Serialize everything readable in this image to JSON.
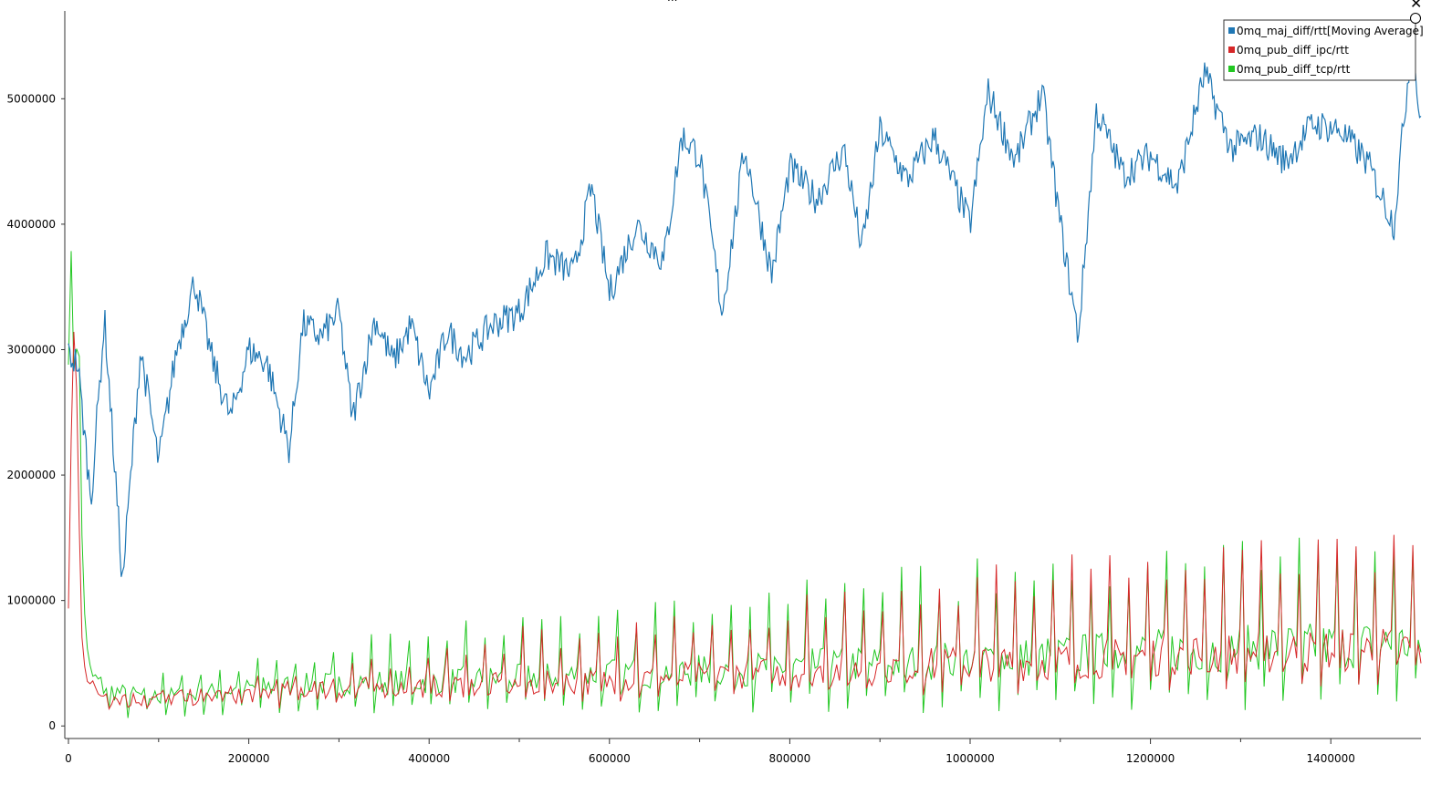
{
  "window": {
    "close_glyph": "✕",
    "top_mark": "..."
  },
  "chart_data": {
    "type": "line",
    "title": "",
    "xlabel": "",
    "ylabel": "",
    "xlim": [
      0,
      1500000
    ],
    "ylim": [
      -100000,
      5700000
    ],
    "x_ticks": [
      0,
      200000,
      400000,
      600000,
      800000,
      1000000,
      1200000,
      1400000
    ],
    "y_ticks": [
      0,
      1000000,
      2000000,
      3000000,
      4000000,
      5000000
    ],
    "x_tick_labels": [
      "0",
      "200000",
      "400000",
      "600000",
      "800000",
      "1000000",
      "1200000",
      "1400000"
    ],
    "y_tick_labels": [
      "0",
      "1000000",
      "2000000",
      "3000000",
      "4000000",
      "5000000"
    ],
    "grid": false,
    "legend_position": "top-right",
    "series": [
      {
        "name": "0mq_maj_diff/rtt[Moving Average]",
        "color": "#1f77b4",
        "x": [
          0,
          10000,
          25000,
          40000,
          60000,
          80000,
          100000,
          120000,
          140000,
          160000,
          180000,
          200000,
          220000,
          245000,
          260000,
          280000,
          300000,
          315000,
          340000,
          360000,
          380000,
          400000,
          420000,
          440000,
          470000,
          500000,
          530000,
          560000,
          580000,
          600000,
          630000,
          660000,
          680000,
          700000,
          725000,
          750000,
          780000,
          800000,
          830000,
          860000,
          880000,
          900000,
          930000,
          960000,
          1000000,
          1020000,
          1050000,
          1080000,
          1100000,
          1120000,
          1140000,
          1170000,
          1200000,
          1230000,
          1260000,
          1290000,
          1320000,
          1350000,
          1380000,
          1410000,
          1440000,
          1470000,
          1490000,
          1500000
        ],
        "y": [
          2950000,
          2900000,
          1800000,
          3250000,
          1150000,
          3000000,
          2100000,
          3000000,
          3550000,
          2900000,
          2450000,
          3000000,
          2900000,
          2200000,
          3200000,
          3100000,
          3300000,
          2450000,
          3250000,
          2900000,
          3200000,
          2650000,
          3150000,
          2950000,
          3200000,
          3300000,
          3750000,
          3600000,
          4300000,
          3450000,
          4000000,
          3700000,
          4700000,
          4550000,
          3300000,
          4600000,
          3600000,
          4450000,
          4200000,
          4600000,
          3800000,
          4750000,
          4350000,
          4700000,
          4000000,
          5050000,
          4500000,
          5050000,
          4000000,
          3100000,
          4900000,
          4400000,
          4550000,
          4300000,
          5200000,
          4600000,
          4700000,
          4500000,
          4800000,
          4750000,
          4500000,
          4000000,
          5500000,
          4750000
        ]
      },
      {
        "name": "0mq_pub_diff_ipc/rtt",
        "color": "#d62728",
        "x": [
          0,
          5000,
          10000,
          15000,
          20000,
          25000,
          40000,
          60000,
          80000,
          100000,
          150000,
          200000,
          300000,
          400000,
          500000,
          600000,
          700000,
          800000,
          900000,
          1000000,
          1100000,
          1200000,
          1300000,
          1400000,
          1500000
        ],
        "y": [
          900000,
          3100000,
          2500000,
          800000,
          400000,
          300000,
          250000,
          220000,
          210000,
          220000,
          230000,
          260000,
          300000,
          320000,
          330000,
          360000,
          400000,
          430000,
          460000,
          500000,
          520000,
          560000,
          580000,
          600000,
          620000
        ],
        "peaks_y": [
          260000,
          300000,
          400000,
          550000,
          700000,
          800000,
          900000,
          1000000,
          1100000,
          1200000,
          1300000,
          1400000,
          1450000,
          1550000,
          1580000
        ]
      },
      {
        "name": "0mq_pub_diff_tcp/rtt",
        "color": "#22c722",
        "x": [
          0,
          5000,
          10000,
          15000,
          20000,
          25000,
          40000,
          60000,
          80000,
          100000,
          150000,
          200000,
          300000,
          400000,
          500000,
          600000,
          700000,
          800000,
          900000,
          1000000,
          1100000,
          1200000,
          1300000,
          1400000,
          1500000
        ],
        "y": [
          3600000,
          3000000,
          3500000,
          1500000,
          600000,
          400000,
          300000,
          260000,
          240000,
          230000,
          260000,
          300000,
          340000,
          360000,
          380000,
          420000,
          440000,
          470000,
          500000,
          530000,
          560000,
          600000,
          620000,
          640000,
          660000
        ],
        "peaks_y": [
          300000,
          500000,
          600000,
          750000,
          850000,
          950000,
          1000000,
          1100000,
          1200000,
          1300000,
          1350000,
          1450000,
          1500000,
          1550000,
          1550000
        ]
      }
    ]
  }
}
